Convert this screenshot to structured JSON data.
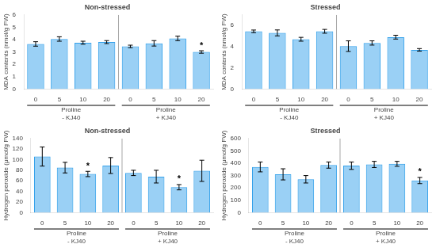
{
  "chart_data": [
    {
      "type": "bar",
      "title": "Non-stressed",
      "ylabel": "MDA contents (nmol/g FW)",
      "categories": [
        "0",
        "5",
        "10",
        "20",
        "0",
        "5",
        "10",
        "20"
      ],
      "values": [
        3.65,
        4.05,
        3.75,
        3.8,
        3.45,
        3.7,
        4.1,
        3.0
      ],
      "errors": [
        0.18,
        0.18,
        0.12,
        0.12,
        0.1,
        0.22,
        0.18,
        0.1
      ],
      "annotations": [
        {
          "text": "*",
          "index": 7
        }
      ],
      "groups": [
        {
          "text": [
            "Proline",
            "- KJ40"
          ]
        },
        {
          "text": [
            "Proline",
            "+ KJ40"
          ]
        }
      ],
      "ylim": [
        0,
        6
      ],
      "yticks": [
        0,
        1,
        2,
        3,
        4,
        5,
        6
      ],
      "grid": false
    },
    {
      "type": "bar",
      "title": "Stressed",
      "ylabel": "MDA contents (nmol/g FW)",
      "categories": [
        "0",
        "5",
        "10",
        "20",
        "0",
        "5",
        "10",
        "20"
      ],
      "values": [
        5.45,
        5.3,
        4.7,
        5.45,
        4.05,
        4.35,
        4.9,
        3.7
      ],
      "errors": [
        0.12,
        0.28,
        0.18,
        0.18,
        0.5,
        0.2,
        0.18,
        0.12
      ],
      "annotations": [],
      "groups": [
        {
          "text": [
            "Proline",
            "- KJ40"
          ]
        },
        {
          "text": [
            "Proline",
            "+ KJ40"
          ]
        }
      ],
      "ylim": [
        0,
        7
      ],
      "yticks": [
        0,
        2,
        4,
        6
      ],
      "grid": false
    },
    {
      "type": "bar",
      "title": "Non-stressed",
      "ylabel": "Hydrogen peroxide (μmol/g FW)",
      "categories": [
        "0",
        "5",
        "10",
        "20",
        "0",
        "5",
        "10",
        "20"
      ],
      "values": [
        106,
        85,
        73,
        89,
        75,
        68,
        48,
        79
      ],
      "errors": [
        18,
        10,
        5,
        15,
        5,
        12,
        5,
        20
      ],
      "annotations": [
        {
          "text": "*",
          "index": 2
        },
        {
          "text": "*",
          "index": 6
        }
      ],
      "groups": [
        {
          "text": [
            "Proline",
            "- KJ40"
          ]
        },
        {
          "text": [
            "Proline",
            "+ KJ40"
          ]
        }
      ],
      "ylim": [
        0,
        140
      ],
      "yticks": [
        0,
        20,
        40,
        60,
        80,
        100,
        120,
        140
      ],
      "grid": false
    },
    {
      "type": "bar",
      "title": "Stressed",
      "ylabel": "Hydrogen peroxide (μmol/g FW)",
      "categories": [
        "0",
        "5",
        "10",
        "20",
        "0",
        "5",
        "10",
        "20"
      ],
      "values": [
        370,
        310,
        270,
        385,
        380,
        390,
        395,
        260
      ],
      "errors": [
        40,
        45,
        30,
        25,
        30,
        25,
        20,
        25
      ],
      "annotations": [
        {
          "text": "*",
          "index": 7
        }
      ],
      "groups": [
        {
          "text": [
            "Proline",
            "- KJ40"
          ]
        },
        {
          "text": [
            "Proline",
            "+ KJ40"
          ]
        }
      ],
      "ylim": [
        0,
        600
      ],
      "yticks": [
        0,
        100,
        200,
        300,
        400,
        500,
        600
      ],
      "grid": false
    }
  ]
}
